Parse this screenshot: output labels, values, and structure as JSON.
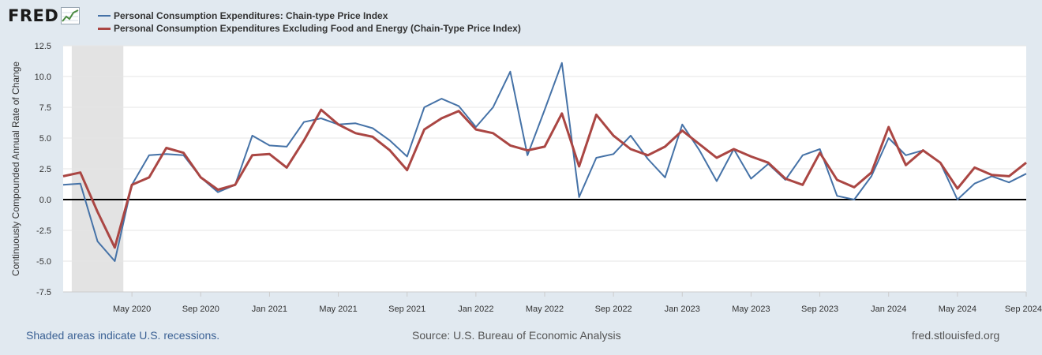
{
  "header": {
    "logo_text": "FRED",
    "legend": [
      {
        "name": "Personal Consumption Expenditures: Chain-type Price Index",
        "color": "#4572a7"
      },
      {
        "name": "Personal Consumption Expenditures Excluding Food and Energy (Chain-Type Price Index)",
        "color": "#aa4643"
      }
    ]
  },
  "footer": {
    "recession_note": "Shaded areas indicate U.S. recessions.",
    "source": "Source: U.S. Bureau of Economic Analysis",
    "site": "fred.stlouisfed.org"
  },
  "chart_data": {
    "type": "line",
    "ylabel": "Continuously Compounded Annual Rate of Change",
    "ylim": [
      -7.5,
      12.5
    ],
    "yticks": [
      "12.5",
      "10.0",
      "7.5",
      "5.0",
      "2.5",
      "0.0",
      "-2.5",
      "-5.0",
      "-7.5"
    ],
    "x_start": "2020-01",
    "xticks": [
      {
        "label": "May 2020",
        "month": "2020-05"
      },
      {
        "label": "Sep 2020",
        "month": "2020-09"
      },
      {
        "label": "Jan 2021",
        "month": "2021-01"
      },
      {
        "label": "May 2021",
        "month": "2021-05"
      },
      {
        "label": "Sep 2021",
        "month": "2021-09"
      },
      {
        "label": "Jan 2022",
        "month": "2022-01"
      },
      {
        "label": "May 2022",
        "month": "2022-05"
      },
      {
        "label": "Sep 2022",
        "month": "2022-09"
      },
      {
        "label": "Jan 2023",
        "month": "2023-01"
      },
      {
        "label": "May 2023",
        "month": "2023-05"
      },
      {
        "label": "Sep 2023",
        "month": "2023-09"
      },
      {
        "label": "Jan 2024",
        "month": "2024-01"
      },
      {
        "label": "May 2024",
        "month": "2024-05"
      },
      {
        "label": "Sep 2024",
        "month": "2024-09"
      }
    ],
    "recessions": [
      {
        "start": "2020-02",
        "end": "2020-04"
      }
    ],
    "zero_line": true,
    "grid": "horizontal",
    "series": [
      {
        "name": "Personal Consumption Expenditures: Chain-type Price Index",
        "color": "#4572a7",
        "width": 2,
        "values": [
          1.2,
          1.3,
          -3.4,
          -5.0,
          1.2,
          3.6,
          3.7,
          3.6,
          1.8,
          0.6,
          1.2,
          5.2,
          4.4,
          4.3,
          6.3,
          6.6,
          6.1,
          6.2,
          5.8,
          4.8,
          3.5,
          7.5,
          8.2,
          7.6,
          5.9,
          7.5,
          10.4,
          3.6,
          7.3,
          11.1,
          0.2,
          3.4,
          3.7,
          5.2,
          3.3,
          1.8,
          6.1,
          4.0,
          1.5,
          4.1,
          1.7,
          2.9,
          1.6,
          3.6,
          4.1,
          0.3,
          0.0,
          1.9,
          5.0,
          3.6,
          4.0,
          3.0,
          0.0,
          1.3,
          1.9,
          1.4,
          2.1
        ]
      },
      {
        "name": "Personal Consumption Expenditures Excluding Food and Energy (Chain-Type Price Index)",
        "color": "#aa4643",
        "width": 3,
        "values": [
          1.9,
          2.2,
          -1.0,
          -3.9,
          1.2,
          1.8,
          4.2,
          3.8,
          1.8,
          0.8,
          1.2,
          3.6,
          3.7,
          2.6,
          4.8,
          7.3,
          6.1,
          5.4,
          5.1,
          4.0,
          2.4,
          5.7,
          6.6,
          7.2,
          5.7,
          5.4,
          4.4,
          4.0,
          4.3,
          7.0,
          2.7,
          6.9,
          5.2,
          4.1,
          3.6,
          4.3,
          5.6,
          4.5,
          3.4,
          4.1,
          3.5,
          3.0,
          1.7,
          1.2,
          3.8,
          1.6,
          1.0,
          2.2,
          5.9,
          2.8,
          4.0,
          3.0,
          0.9,
          2.6,
          2.0,
          1.9,
          3.0
        ]
      }
    ]
  }
}
